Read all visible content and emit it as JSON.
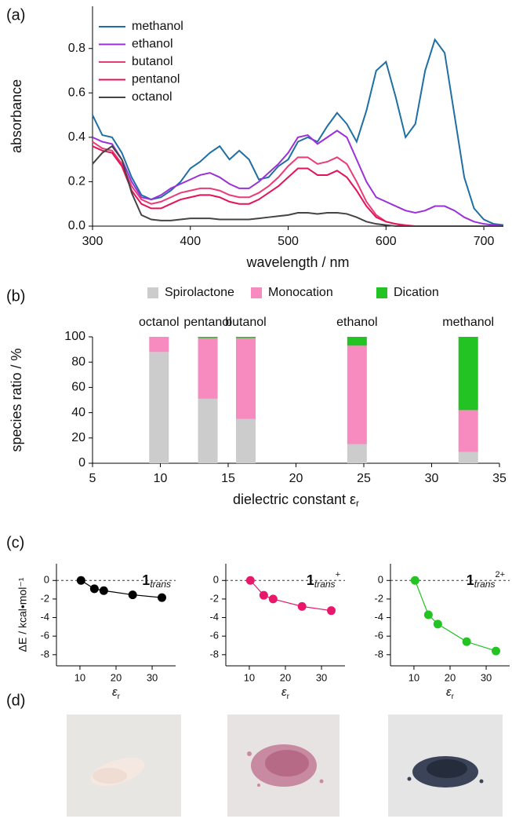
{
  "panel_labels": [
    "(a)",
    "(b)",
    "(c)",
    "(d)"
  ],
  "chart_data": [
    {
      "type": "line",
      "x_label": "wavelength / nm",
      "y_label": "absorbance",
      "legend": "upper left",
      "x": [
        300,
        310,
        320,
        330,
        340,
        350,
        360,
        370,
        380,
        390,
        400,
        410,
        420,
        430,
        440,
        450,
        460,
        470,
        480,
        490,
        500,
        510,
        520,
        530,
        540,
        550,
        560,
        570,
        580,
        590,
        600,
        610,
        620,
        630,
        640,
        650,
        660,
        670,
        680,
        690,
        700,
        710,
        720
      ],
      "series": [
        {
          "name": "methanol",
          "color": "#1f6fa4",
          "values": [
            0.5,
            0.41,
            0.4,
            0.33,
            0.22,
            0.14,
            0.12,
            0.13,
            0.16,
            0.2,
            0.26,
            0.29,
            0.33,
            0.36,
            0.3,
            0.34,
            0.3,
            0.21,
            0.22,
            0.27,
            0.3,
            0.38,
            0.4,
            0.38,
            0.45,
            0.51,
            0.46,
            0.38,
            0.52,
            0.7,
            0.74,
            0.58,
            0.4,
            0.46,
            0.7,
            0.84,
            0.78,
            0.5,
            0.22,
            0.08,
            0.03,
            0.01,
            0.005
          ]
        },
        {
          "name": "ethanol",
          "color": "#9b30d8",
          "values": [
            0.4,
            0.38,
            0.37,
            0.3,
            0.2,
            0.13,
            0.12,
            0.14,
            0.17,
            0.19,
            0.21,
            0.23,
            0.24,
            0.22,
            0.19,
            0.17,
            0.17,
            0.2,
            0.24,
            0.28,
            0.33,
            0.4,
            0.41,
            0.37,
            0.4,
            0.43,
            0.4,
            0.3,
            0.2,
            0.13,
            0.11,
            0.09,
            0.07,
            0.06,
            0.07,
            0.09,
            0.09,
            0.07,
            0.04,
            0.02,
            0.01,
            0.005,
            0
          ]
        },
        {
          "name": "butanol",
          "color": "#ea3a78",
          "values": [
            0.38,
            0.35,
            0.34,
            0.28,
            0.18,
            0.12,
            0.1,
            0.11,
            0.13,
            0.15,
            0.16,
            0.17,
            0.17,
            0.16,
            0.14,
            0.13,
            0.13,
            0.15,
            0.18,
            0.22,
            0.27,
            0.31,
            0.31,
            0.28,
            0.29,
            0.31,
            0.28,
            0.2,
            0.11,
            0.05,
            0.02,
            0.01,
            0.005,
            0,
            0,
            0,
            0,
            0,
            0,
            0,
            0,
            0,
            0
          ]
        },
        {
          "name": "pentanol",
          "color": "#e3135a",
          "values": [
            0.36,
            0.34,
            0.33,
            0.27,
            0.16,
            0.1,
            0.08,
            0.08,
            0.1,
            0.12,
            0.13,
            0.14,
            0.14,
            0.13,
            0.11,
            0.1,
            0.1,
            0.12,
            0.15,
            0.18,
            0.22,
            0.26,
            0.26,
            0.23,
            0.23,
            0.25,
            0.22,
            0.16,
            0.09,
            0.04,
            0.02,
            0.01,
            0,
            0,
            0,
            0,
            0,
            0,
            0,
            0,
            0,
            0,
            0
          ]
        },
        {
          "name": "octanol",
          "color": "#444444",
          "values": [
            0.28,
            0.33,
            0.36,
            0.3,
            0.15,
            0.05,
            0.03,
            0.025,
            0.025,
            0.03,
            0.035,
            0.035,
            0.035,
            0.03,
            0.03,
            0.03,
            0.03,
            0.035,
            0.04,
            0.045,
            0.05,
            0.06,
            0.06,
            0.055,
            0.06,
            0.06,
            0.055,
            0.04,
            0.02,
            0.01,
            0.005,
            0,
            0,
            0,
            0,
            0,
            0,
            0,
            0,
            0,
            0,
            0,
            0
          ]
        }
      ],
      "xlim": [
        300,
        720
      ],
      "ylim": [
        0,
        0.99
      ],
      "xticks": [
        300,
        400,
        500,
        600,
        700
      ],
      "yticks": [
        {
          "value": 0,
          "label": "0.0"
        },
        0.2,
        0.4,
        0.6,
        0.8
      ]
    },
    {
      "type": "bar",
      "stacked": true,
      "x_label": "dielectric constant ε",
      "x_label_sub": "r",
      "y_label": "species ratio / %",
      "legend": "top",
      "x": [
        9.9,
        13.5,
        16.3,
        24.5,
        32.7
      ],
      "categories": [
        "octanol",
        "pentanol",
        "butanol",
        "ethanol",
        "methanol"
      ],
      "series": [
        {
          "name": "Spirolactone",
          "color": "#cccccc",
          "values": [
            88,
            51,
            35,
            15,
            9
          ]
        },
        {
          "name": "Monocation",
          "color": "#f78bc0",
          "values": [
            12,
            48,
            64,
            78,
            33
          ]
        },
        {
          "name": "Dication",
          "color": "#22c322",
          "values": [
            0,
            1,
            1,
            7,
            58
          ]
        }
      ],
      "xlim": [
        5,
        35
      ],
      "ylim": [
        0,
        100
      ],
      "xticks": [
        5,
        10,
        15,
        20,
        25,
        30,
        35
      ],
      "yticks": [
        0,
        20,
        40,
        60,
        80,
        100
      ]
    },
    {
      "type": "line",
      "markers": true,
      "title": "1",
      "title_sub": "trans",
      "y_label": "ΔE / kcal•mol⁻¹",
      "x_label": "ε",
      "x_label_sub": "r",
      "hline": 0,
      "x": [
        10.3,
        14,
        16.6,
        24.6,
        32.7
      ],
      "series": [
        {
          "color": "#000000",
          "values": [
            0,
            -0.9,
            -1.1,
            -1.55,
            -1.85
          ]
        }
      ],
      "xlim": [
        3.5,
        36.5
      ],
      "ylim": [
        -9.2,
        1.8
      ],
      "xticks": [
        10,
        20,
        30
      ],
      "yticks": [
        0,
        -2,
        -4,
        -6,
        -8
      ]
    },
    {
      "type": "line",
      "markers": true,
      "title": "1",
      "title_sub": "trans",
      "title_sup": "+",
      "x_label": "ε",
      "x_label_sub": "r",
      "hline": 0,
      "x": [
        10.3,
        14,
        16.6,
        24.6,
        32.7
      ],
      "series": [
        {
          "color": "#e8176a",
          "values": [
            0,
            -1.6,
            -2.0,
            -2.8,
            -3.25
          ]
        }
      ],
      "xlim": [
        3.5,
        36.5
      ],
      "ylim": [
        -9.2,
        1.8
      ],
      "xticks": [
        10,
        20,
        30
      ],
      "yticks": [
        0,
        -2,
        -4,
        -6,
        -8
      ]
    },
    {
      "type": "line",
      "markers": true,
      "title": "1",
      "title_sub": "trans",
      "title_sup": "2+",
      "x_label": "ε",
      "x_label_sub": "r",
      "hline": 0,
      "x": [
        10.3,
        14,
        16.6,
        24.6,
        32.7
      ],
      "series": [
        {
          "color": "#22c322",
          "values": [
            0,
            -3.7,
            -4.7,
            -6.6,
            -7.6
          ]
        }
      ],
      "xlim": [
        3.5,
        36.5
      ],
      "ylim": [
        -9.2,
        1.8
      ],
      "xticks": [
        10,
        20,
        30
      ],
      "yticks": [
        0,
        -2,
        -4,
        -6,
        -8
      ]
    }
  ]
}
